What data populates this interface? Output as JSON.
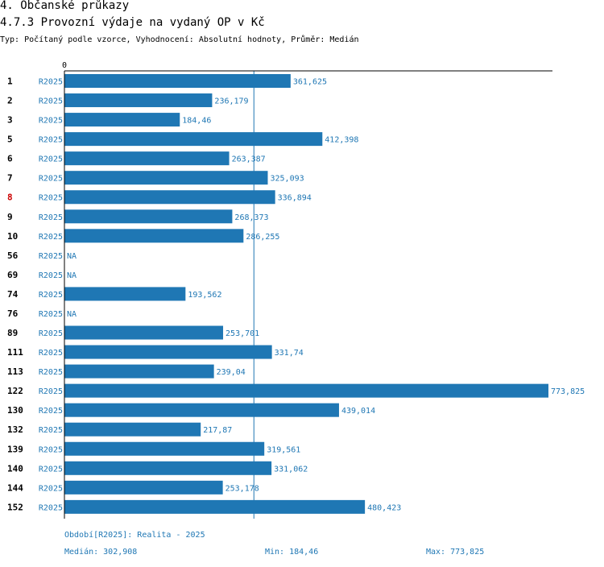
{
  "header": {
    "section": "4. Občanské průkazy",
    "title": "4.7.3 Provozní výdaje na vydaný OP v Kč",
    "subtitle": "Typ: Počítaný podle vzorce, Vyhodnocení: Absolutní hodnoty, Průměr: Medián"
  },
  "colors": {
    "bar": "#1f77b4",
    "highlight": "#cc0000",
    "text": "#000000"
  },
  "chart_data": {
    "type": "bar",
    "orientation": "horizontal",
    "series_label": "R2025",
    "xlim": [
      0,
      773.825
    ],
    "x_tick_label": "0",
    "median": 302.908,
    "highlight_category": "8",
    "categories": [
      "1",
      "2",
      "3",
      "5",
      "6",
      "7",
      "8",
      "9",
      "10",
      "56",
      "69",
      "74",
      "76",
      "89",
      "111",
      "113",
      "122",
      "130",
      "132",
      "139",
      "140",
      "144",
      "152"
    ],
    "values": [
      361.625,
      236.179,
      184.46,
      412.398,
      263.387,
      325.093,
      336.894,
      268.373,
      286.255,
      null,
      null,
      193.562,
      null,
      253.701,
      331.74,
      239.04,
      773.825,
      439.014,
      217.87,
      319.561,
      331.062,
      253.178,
      480.423
    ],
    "value_labels": [
      "361,625",
      "236,179",
      "184,46",
      "412,398",
      "263,387",
      "325,093",
      "336,894",
      "268,373",
      "286,255",
      "NA",
      "NA",
      "193,562",
      "NA",
      "253,701",
      "331,74",
      "239,04",
      "773,825",
      "439,014",
      "217,87",
      "319,561",
      "331,062",
      "253,178",
      "480,423"
    ]
  },
  "footer": {
    "period": "Období[R2025]: Realita - 2025",
    "median": "Medián: 302,908",
    "min": "Min: 184,46",
    "max": "Max: 773,825"
  }
}
